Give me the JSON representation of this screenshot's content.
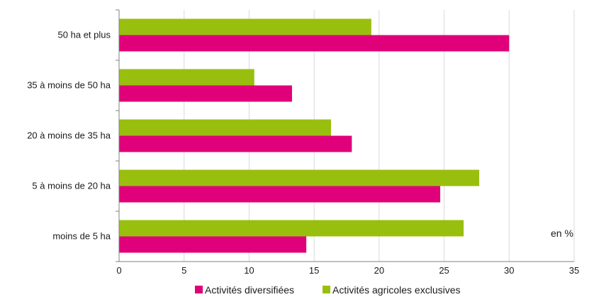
{
  "chart_data": {
    "type": "bar",
    "orientation": "horizontal",
    "categories": [
      "50 ha et plus",
      "35 à  moins de 50 ha",
      "20 à  moins de 35 ha",
      "5 à  moins de 20 ha",
      "moins de 5 ha"
    ],
    "series": [
      {
        "name": "Activités agricoles exclusives",
        "color": "#99bf0e",
        "values": [
          19.4,
          10.4,
          16.3,
          27.7,
          26.5
        ]
      },
      {
        "name": "Activités diversifiées",
        "color": "#e0007a",
        "values": [
          30.0,
          13.3,
          17.9,
          24.7,
          14.4
        ]
      }
    ],
    "xlim": [
      0,
      35
    ],
    "xticks": [
      "0",
      "5",
      "10",
      "15",
      "20",
      "25",
      "30",
      "35"
    ],
    "grid": "vertical",
    "legend_position": "bottom",
    "legend_order": [
      "Activités diversifiées",
      "Activités agricoles exclusives"
    ],
    "unit_annotation": "en %"
  }
}
